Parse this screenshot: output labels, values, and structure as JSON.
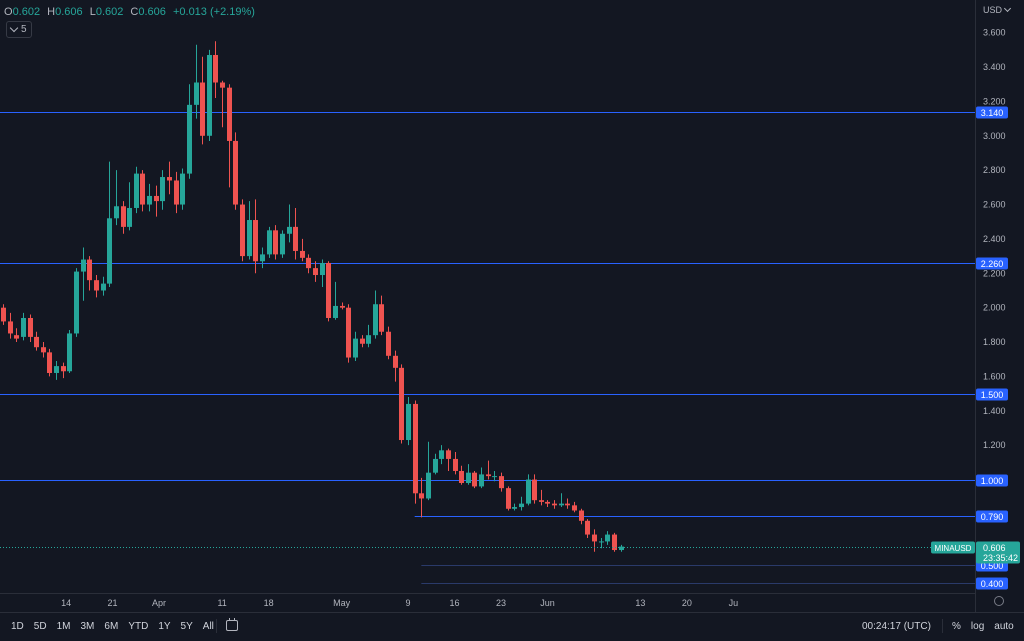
{
  "legend": {
    "open_label": "O",
    "open": "0.602",
    "high_label": "H",
    "high": "0.606",
    "low_label": "L",
    "low": "0.602",
    "close_label": "C",
    "close": "0.606",
    "change": "+0.013 (+2.19%)"
  },
  "interval": "5",
  "currency": "USD",
  "symbol": "MINAUSD",
  "last_price": "0.606",
  "countdown": "23:35:42",
  "ranges": [
    "1D",
    "5D",
    "1M",
    "3M",
    "6M",
    "YTD",
    "1Y",
    "5Y",
    "All"
  ],
  "clock": "00:24:17 (UTC)",
  "options": [
    "%",
    "log",
    "auto"
  ],
  "colors": {
    "up": "#26a69a",
    "down": "#ef5350",
    "hline": "#2962ff",
    "bg": "#131722"
  },
  "chart_data": {
    "type": "candlestick",
    "ylim": [
      0.34,
      3.79
    ],
    "y_ticks": [
      3.6,
      3.4,
      3.2,
      3.0,
      2.8,
      2.6,
      2.4,
      2.2,
      2.0,
      1.8,
      1.6,
      1.4,
      1.2
    ],
    "y_tick_labels": [
      "3.600",
      "3.400",
      "3.200",
      "3.000",
      "2.800",
      "2.600",
      "2.400",
      "2.200",
      "2.000",
      "1.800",
      "1.600",
      "1.400",
      "1.200"
    ],
    "x_ticks": [
      "14",
      "21",
      "Apr",
      "11",
      "18",
      "May",
      "9",
      "16",
      "23",
      "Jun",
      "13",
      "20",
      "Ju"
    ],
    "horizontal_levels": [
      {
        "label": "3.140",
        "value": 3.14,
        "full": true
      },
      {
        "label": "2.260",
        "value": 2.26,
        "full": true
      },
      {
        "label": "1.500",
        "value": 1.5,
        "full": true
      },
      {
        "label": "1.000",
        "value": 1.0,
        "full": true
      },
      {
        "label": "0.790",
        "value": 0.79,
        "full": false
      },
      {
        "label": "0.500",
        "value": 0.5,
        "full": false
      },
      {
        "label": "0.400",
        "value": 0.4,
        "full": false
      }
    ],
    "candles": [
      [
        2.0,
        1.92,
        2.02,
        1.9
      ],
      [
        1.92,
        1.85,
        1.97,
        1.82
      ],
      [
        1.84,
        1.82,
        1.88,
        1.8
      ],
      [
        1.83,
        1.94,
        1.97,
        1.81
      ],
      [
        1.94,
        1.83,
        1.96,
        1.8
      ],
      [
        1.83,
        1.77,
        1.86,
        1.75
      ],
      [
        1.77,
        1.74,
        1.8,
        1.71
      ],
      [
        1.74,
        1.62,
        1.76,
        1.6
      ],
      [
        1.62,
        1.66,
        1.69,
        1.58
      ],
      [
        1.66,
        1.63,
        1.68,
        1.59
      ],
      [
        1.63,
        1.85,
        1.87,
        1.62
      ],
      [
        1.85,
        2.21,
        2.23,
        1.83
      ],
      [
        2.21,
        2.28,
        2.35,
        2.04
      ],
      [
        2.28,
        2.16,
        2.3,
        2.1
      ],
      [
        2.16,
        2.1,
        2.19,
        2.06
      ],
      [
        2.1,
        2.14,
        2.18,
        2.07
      ],
      [
        2.14,
        2.52,
        2.85,
        2.12
      ],
      [
        2.52,
        2.59,
        2.8,
        2.48
      ],
      [
        2.59,
        2.47,
        2.62,
        2.43
      ],
      [
        2.47,
        2.58,
        2.73,
        2.45
      ],
      [
        2.58,
        2.78,
        2.82,
        2.55
      ],
      [
        2.78,
        2.6,
        2.8,
        2.56
      ],
      [
        2.6,
        2.65,
        2.72,
        2.56
      ],
      [
        2.65,
        2.62,
        2.71,
        2.53
      ],
      [
        2.62,
        2.76,
        2.8,
        2.57
      ],
      [
        2.76,
        2.74,
        2.85,
        2.66
      ],
      [
        2.74,
        2.6,
        2.79,
        2.55
      ],
      [
        2.6,
        2.78,
        2.81,
        2.57
      ],
      [
        2.78,
        3.18,
        3.3,
        2.75
      ],
      [
        3.18,
        3.31,
        3.53,
        3.1
      ],
      [
        3.31,
        3.0,
        3.46,
        2.95
      ],
      [
        3.0,
        3.47,
        3.5,
        2.97
      ],
      [
        3.47,
        3.31,
        3.55,
        3.22
      ],
      [
        3.31,
        3.28,
        3.32,
        3.05
      ],
      [
        3.28,
        2.97,
        3.3,
        2.7
      ],
      [
        2.97,
        2.6,
        3.02,
        2.57
      ],
      [
        2.6,
        2.3,
        2.63,
        2.27
      ],
      [
        2.3,
        2.51,
        2.62,
        2.28
      ],
      [
        2.51,
        2.27,
        2.63,
        2.2
      ],
      [
        2.27,
        2.31,
        2.35,
        2.23
      ],
      [
        2.31,
        2.45,
        2.47,
        2.29
      ],
      [
        2.45,
        2.31,
        2.48,
        2.28
      ],
      [
        2.31,
        2.43,
        2.45,
        2.29
      ],
      [
        2.43,
        2.47,
        2.6,
        2.38
      ],
      [
        2.47,
        2.33,
        2.58,
        2.28
      ],
      [
        2.33,
        2.29,
        2.4,
        2.27
      ],
      [
        2.29,
        2.23,
        2.31,
        2.2
      ],
      [
        2.23,
        2.19,
        2.27,
        2.15
      ],
      [
        2.19,
        2.26,
        2.28,
        2.12
      ],
      [
        2.26,
        1.94,
        2.27,
        1.92
      ],
      [
        1.94,
        2.01,
        2.15,
        1.93
      ],
      [
        2.01,
        2.0,
        2.03,
        1.99
      ],
      [
        2.0,
        1.71,
        2.02,
        1.68
      ],
      [
        1.71,
        1.82,
        1.86,
        1.69
      ],
      [
        1.82,
        1.79,
        1.84,
        1.77
      ],
      [
        1.79,
        1.84,
        1.9,
        1.77
      ],
      [
        1.84,
        2.02,
        2.1,
        1.82
      ],
      [
        2.02,
        1.86,
        2.07,
        1.84
      ],
      [
        1.86,
        1.72,
        1.89,
        1.7
      ],
      [
        1.72,
        1.65,
        1.75,
        1.57
      ],
      [
        1.65,
        1.23,
        1.67,
        1.21
      ],
      [
        1.23,
        1.44,
        1.48,
        1.2
      ],
      [
        1.44,
        0.92,
        1.46,
        0.86
      ],
      [
        0.92,
        0.89,
        1.01,
        0.78
      ],
      [
        0.89,
        1.04,
        1.22,
        0.88
      ],
      [
        1.04,
        1.12,
        1.15,
        1.03
      ],
      [
        1.12,
        1.17,
        1.2,
        1.09
      ],
      [
        1.17,
        1.12,
        1.18,
        1.05
      ],
      [
        1.12,
        1.05,
        1.16,
        1.03
      ],
      [
        1.05,
        0.98,
        1.08,
        0.97
      ],
      [
        0.98,
        1.04,
        1.09,
        0.97
      ],
      [
        1.04,
        0.96,
        1.05,
        0.95
      ],
      [
        0.96,
        1.03,
        1.07,
        0.95
      ],
      [
        1.03,
        1.02,
        1.11,
        1.0
      ],
      [
        1.02,
        1.02,
        1.05,
        0.99
      ],
      [
        1.02,
        0.95,
        1.04,
        0.93
      ],
      [
        0.95,
        0.83,
        0.96,
        0.82
      ],
      [
        0.83,
        0.84,
        0.86,
        0.82
      ],
      [
        0.84,
        0.86,
        0.9,
        0.82
      ],
      [
        0.86,
        1.0,
        1.03,
        0.85
      ],
      [
        1.0,
        0.88,
        1.03,
        0.86
      ],
      [
        0.88,
        0.87,
        0.94,
        0.85
      ],
      [
        0.87,
        0.86,
        0.88,
        0.84
      ],
      [
        0.86,
        0.85,
        0.88,
        0.83
      ],
      [
        0.85,
        0.86,
        0.92,
        0.84
      ],
      [
        0.86,
        0.85,
        0.89,
        0.83
      ],
      [
        0.85,
        0.82,
        0.87,
        0.81
      ],
      [
        0.82,
        0.76,
        0.83,
        0.74
      ],
      [
        0.76,
        0.68,
        0.77,
        0.66
      ],
      [
        0.68,
        0.64,
        0.71,
        0.58
      ],
      [
        0.64,
        0.64,
        0.66,
        0.6
      ],
      [
        0.64,
        0.68,
        0.7,
        0.62
      ],
      [
        0.68,
        0.59,
        0.69,
        0.58
      ],
      [
        0.59,
        0.61,
        0.62,
        0.58
      ]
    ],
    "x_tick_indices": [
      9.5,
      16.5,
      23.5,
      33,
      40,
      51,
      61,
      68,
      75,
      82,
      96,
      103,
      110
    ]
  }
}
